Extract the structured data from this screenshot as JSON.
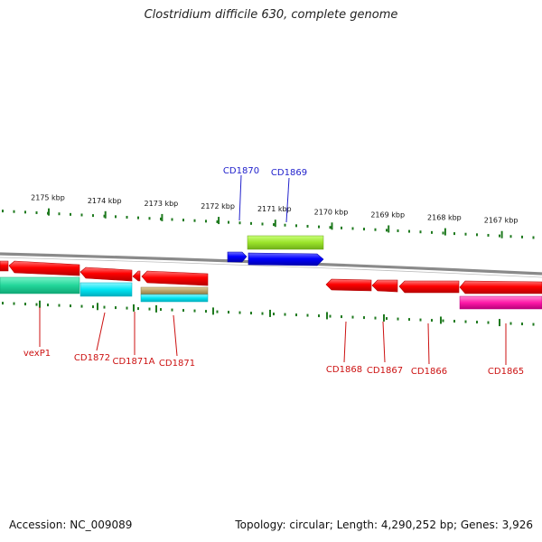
{
  "title": "Clostridium difficile 630, complete genome",
  "footer": {
    "accession": "Accession: NC_009089",
    "topology": "Topology: circular; Length: 4,290,252 bp; Genes: 3,926"
  },
  "colors": {
    "backbone": "#8f8f8f",
    "tick": "#1f7a1f",
    "forward_label": "#2222cc",
    "reverse_label": "#cc1111",
    "red": "#ff0000",
    "blue": "#0000ff",
    "lime": "#99e82b",
    "green": "#22d69a",
    "cyan": "#00e5f2",
    "khaki": "#b8a36a",
    "magenta": "#ff1aa8"
  },
  "scale": {
    "labels": [
      "2175 kbp",
      "2174 kbp",
      "2173 kbp",
      "2172 kbp",
      "2171 kbp",
      "2170 kbp",
      "2169 kbp",
      "2168 kbp",
      "2167 kbp"
    ]
  },
  "genes": {
    "forward": [
      {
        "label": "CD1870",
        "color": "blue"
      },
      {
        "label": "CD1869",
        "color": "blue"
      }
    ],
    "reverse": [
      {
        "label": "vexP1",
        "color": "red"
      },
      {
        "label": "CD1872",
        "color": "red"
      },
      {
        "label": "CD1871A",
        "color": "red"
      },
      {
        "label": "CD1871",
        "color": "red"
      },
      {
        "label": "CD1868",
        "color": "red"
      },
      {
        "label": "CD1867",
        "color": "red"
      },
      {
        "label": "CD1866",
        "color": "red"
      },
      {
        "label": "CD1865",
        "color": "red"
      }
    ]
  }
}
